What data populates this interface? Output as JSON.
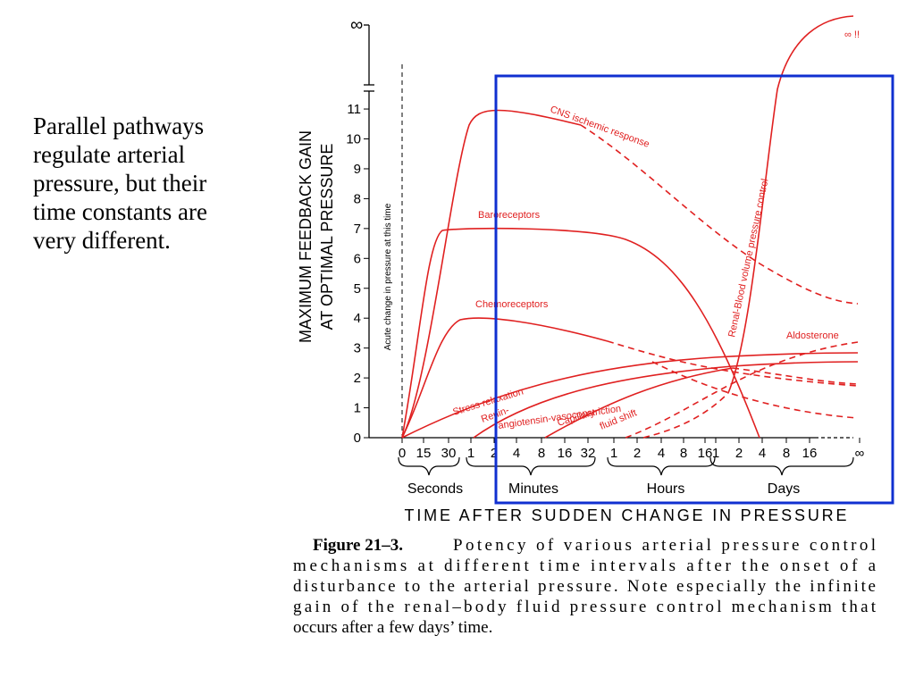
{
  "slide": {
    "text_lines": [
      "Parallel pathways",
      "regulate arterial",
      "pressure, but their",
      "time constants are",
      "very different."
    ]
  },
  "figure": {
    "y_label_lines": [
      "MAXIMUM FEEDBACK GAIN",
      "AT OPTIMAL PRESSURE"
    ],
    "y_ticks": [
      "0",
      "1",
      "2",
      "3",
      "4",
      "5",
      "6",
      "7",
      "8",
      "9",
      "10",
      "11"
    ],
    "y_infinity": "∞",
    "acute_note": "Acute change in pressure at this time",
    "x_ticks": [
      "0",
      "15",
      "30",
      "1",
      "2",
      "4",
      "8",
      "16",
      "32",
      "1",
      "2",
      "4",
      "8",
      "16",
      "1",
      "2",
      "4",
      "8",
      "16",
      "∞"
    ],
    "x_groups": [
      "Seconds",
      "Minutes",
      "Hours",
      "Days"
    ],
    "x_title": "TIME AFTER SUDDEN CHANGE IN PRESSURE",
    "curve_labels": {
      "cns": "CNS ischemic response",
      "baro": "Baroreceptors",
      "chemo": "Chemoreceptors",
      "stress": "Stress relaxation",
      "renin1": "Renin-",
      "renin2": "angiotensin-vasoconstriction",
      "capillary": "Capillary",
      "fluid": "fluid shift",
      "renal": "Renal-Blood volume pressure control",
      "aldo": "Aldosterone",
      "inf": "∞ !!"
    },
    "caption": {
      "label": "Figure 21–3.",
      "lines": [
        "Potency of various arterial pressure control",
        "mechanisms at different time intervals after the onset of a",
        "disturbance to the arterial pressure. Note especially the infinite",
        "gain of the renal–body fluid pressure control mechanism that",
        "occurs after a few days’ time."
      ]
    }
  }
}
